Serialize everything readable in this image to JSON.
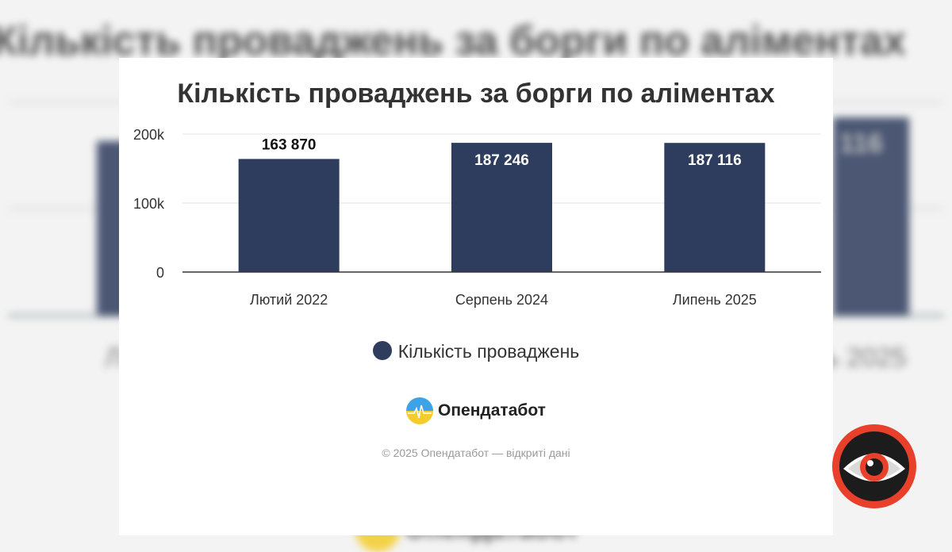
{
  "chart_data": {
    "type": "bar",
    "title": "Кількість проваджень за борги по аліментах",
    "categories": [
      "Лютий 2022",
      "Серпень 2024",
      "Липень 2025"
    ],
    "series": [
      {
        "name": "Кількість проваджень",
        "values": [
          163870,
          187246,
          187116
        ]
      }
    ],
    "data_labels": [
      "163 870",
      "187 246",
      "187 116"
    ],
    "yticks": [
      "0",
      "100k",
      "200k"
    ],
    "ylim": [
      0,
      200000
    ],
    "grid": true,
    "legend_position": "bottom",
    "colors": {
      "bar": "#2e3c5d"
    }
  },
  "brand": {
    "name": "Опендатабот"
  },
  "copyright": "© 2025 Опендатабот — відкриті дані",
  "background": {
    "title": "Кількість проваджень за борги по аліментах",
    "fragments": [
      "116",
      "ь 2025",
      "Л",
      "Опендатабот"
    ]
  },
  "badge": {
    "icon": "eye-icon"
  }
}
